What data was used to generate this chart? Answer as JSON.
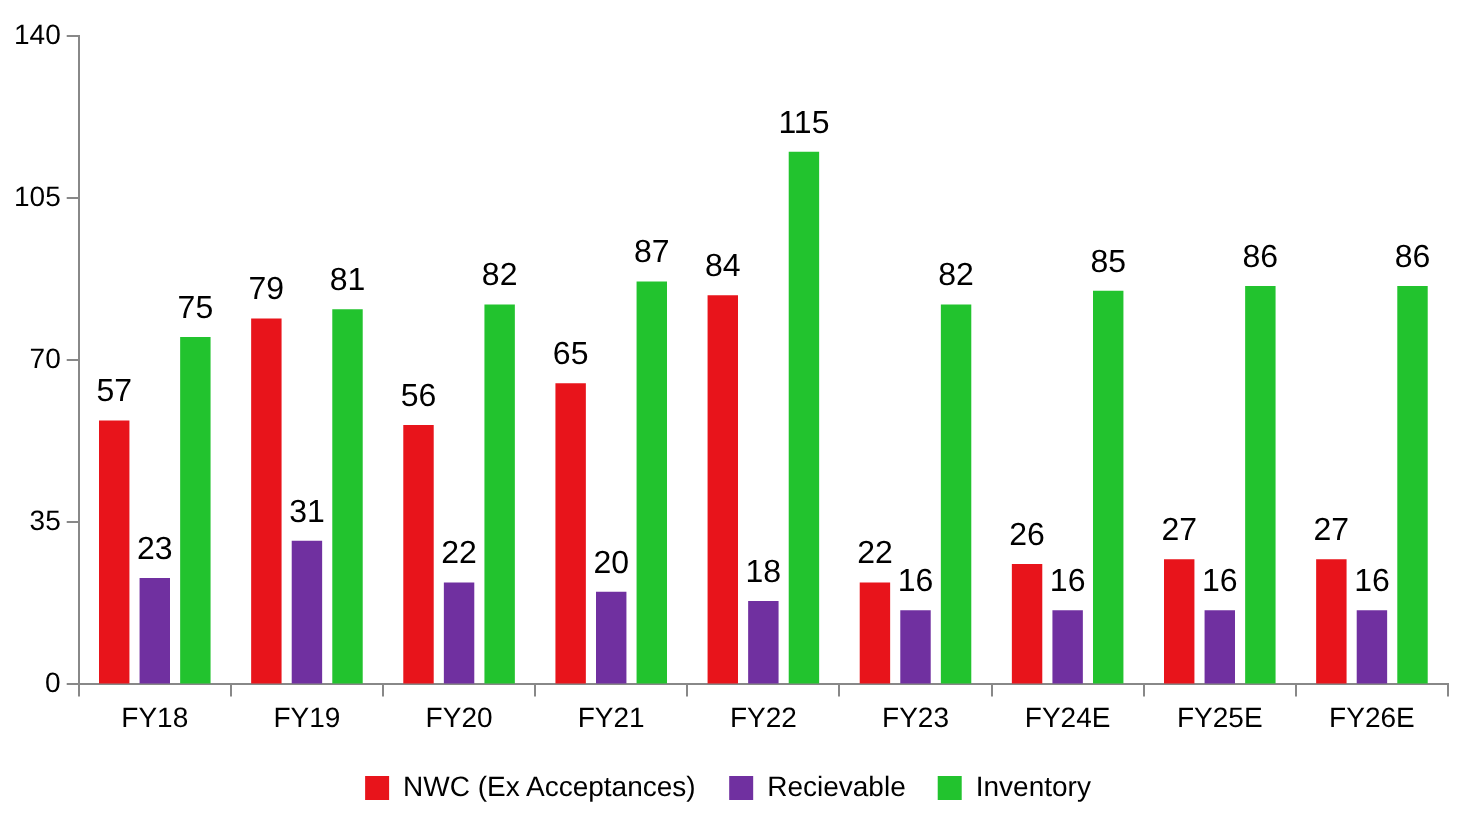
{
  "chart_data": {
    "type": "bar",
    "categories": [
      "FY18",
      "FY19",
      "FY20",
      "FY21",
      "FY22",
      "FY23",
      "FY24E",
      "FY25E",
      "FY26E"
    ],
    "series": [
      {
        "name": "NWC (Ex Acceptances)",
        "color": "#e8141b",
        "values": [
          57,
          79,
          56,
          65,
          84,
          22,
          26,
          27,
          27
        ]
      },
      {
        "name": "Recievable",
        "color": "#7030a0",
        "values": [
          23,
          31,
          22,
          20,
          18,
          16,
          16,
          16,
          16
        ]
      },
      {
        "name": "Inventory",
        "color": "#22c32e",
        "values": [
          75,
          81,
          82,
          87,
          115,
          82,
          85,
          86,
          86
        ]
      }
    ],
    "ylim": [
      0,
      140
    ],
    "yticks": [
      0,
      35,
      70,
      105,
      140
    ],
    "grid": false,
    "legend": "bottom",
    "data_labels": true
  }
}
